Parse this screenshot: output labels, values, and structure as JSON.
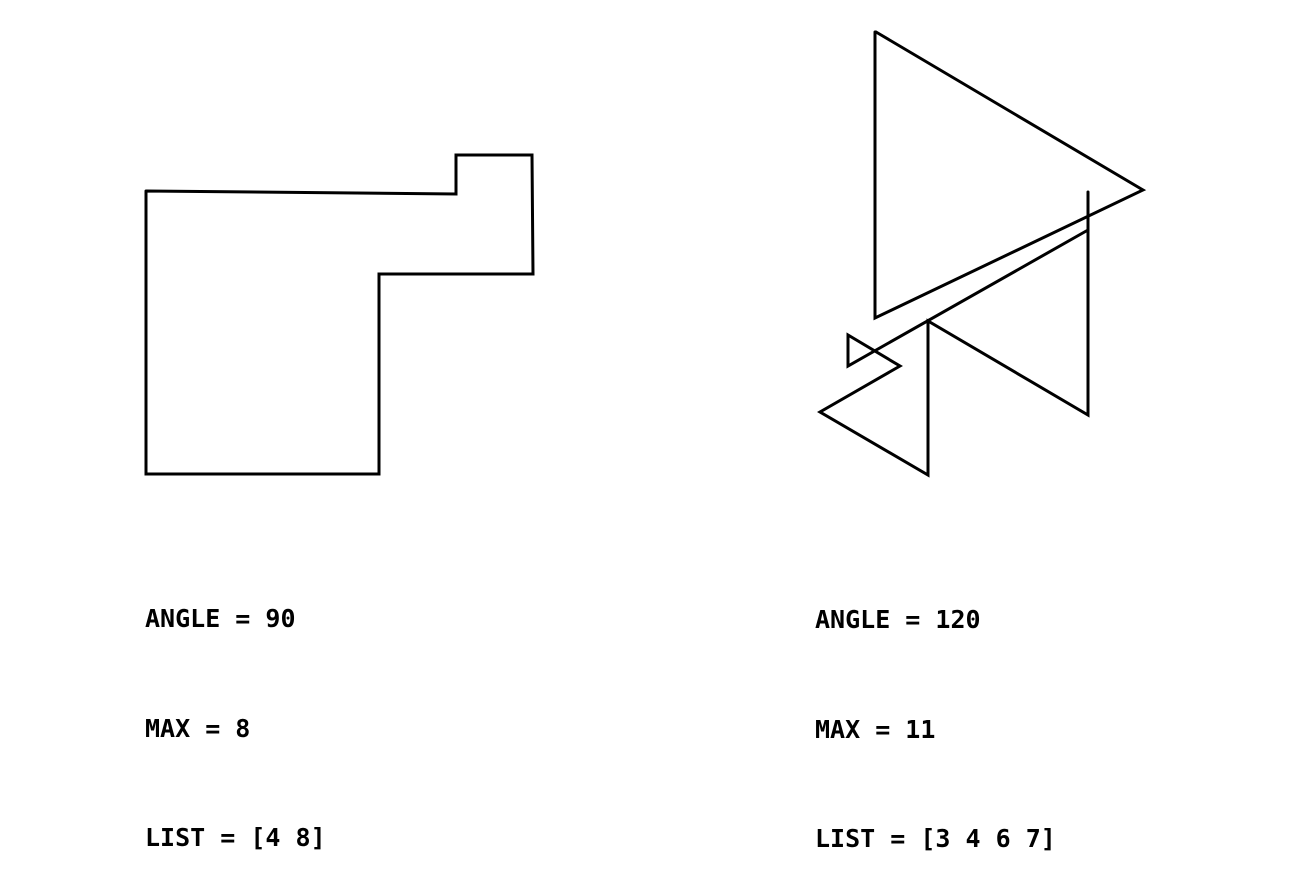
{
  "figures": [
    {
      "angle_line": "ANGLE = 90",
      "max_line": "MAX = 8",
      "list_line": "LIST = [4 8]",
      "angle": 90,
      "max": 8,
      "list": [
        4,
        8
      ]
    },
    {
      "angle_line": "ANGLE = 120",
      "max_line": "MAX = 11",
      "list_line": "LIST = [3 4 6 7]",
      "angle": 120,
      "max": 11,
      "list": [
        3,
        4,
        6,
        7
      ]
    }
  ],
  "stroke_color": "#000000"
}
